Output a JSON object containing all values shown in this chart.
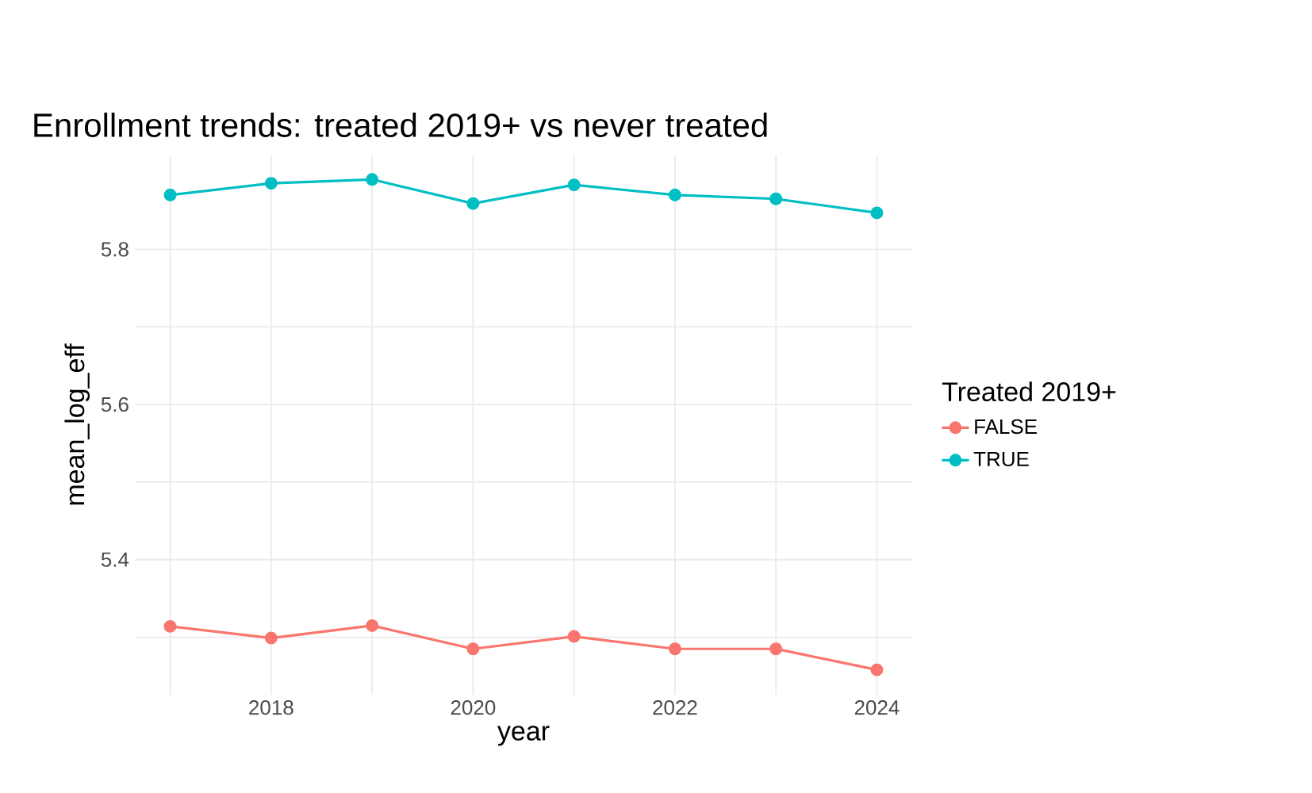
{
  "chart_data": {
    "type": "line",
    "title": "Enrollment trends: treated 2019+ vs never treated",
    "xlabel": "year",
    "ylabel": "mean_log_eff",
    "legend_title": "Treated 2019+",
    "x": [
      2017,
      2018,
      2019,
      2020,
      2021,
      2022,
      2023,
      2024
    ],
    "series": [
      {
        "name": "FALSE",
        "color": "#f8766d",
        "values": [
          5.314,
          5.299,
          5.315,
          5.285,
          5.301,
          5.285,
          5.285,
          5.258
        ]
      },
      {
        "name": "TRUE",
        "color": "#00bfc4",
        "values": [
          5.87,
          5.885,
          5.89,
          5.859,
          5.883,
          5.87,
          5.865,
          5.847
        ]
      }
    ],
    "xlim": [
      2016.65,
      2024.35
    ],
    "ylim": [
      5.226,
      5.921
    ],
    "xticks": [
      {
        "value": 2017,
        "label": null
      },
      2018,
      {
        "value": 2019,
        "label": null
      },
      2020,
      {
        "value": 2021,
        "label": null
      },
      2022,
      {
        "value": 2023,
        "label": null
      },
      2024
    ],
    "yticks": [
      {
        "value": 5.3,
        "label": null
      },
      5.4,
      {
        "value": 5.5,
        "label": null
      },
      5.6,
      {
        "value": 5.7,
        "label": null
      },
      5.8
    ],
    "grid": true,
    "legend": "right",
    "marker": "circle",
    "line_style": "solid"
  }
}
